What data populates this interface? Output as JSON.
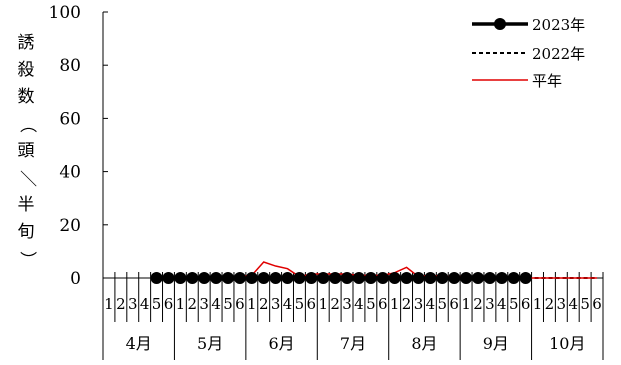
{
  "chart_data": {
    "type": "line",
    "ylabel": "誘殺数（頭／半旬）",
    "ylim": [
      0,
      100
    ],
    "yticks": [
      0,
      20,
      40,
      60,
      80,
      100
    ],
    "months": [
      "4月",
      "5月",
      "6月",
      "7月",
      "8月",
      "9月",
      "10月"
    ],
    "pentad_labels": [
      "1",
      "2",
      "3",
      "4",
      "5",
      "6"
    ],
    "legend": {
      "position": "top-right"
    },
    "series": [
      {
        "name": "2023年",
        "style": "thick-line-markers",
        "color": "#000000",
        "values": [
          null,
          null,
          null,
          null,
          0,
          0,
          0,
          0,
          0,
          0,
          0,
          0,
          0,
          0,
          0,
          0,
          0,
          0,
          0,
          0,
          0,
          0,
          0,
          0,
          0,
          0,
          0,
          0,
          0,
          0,
          0,
          0,
          0,
          0,
          0,
          0,
          null,
          null,
          null,
          null,
          null,
          null
        ]
      },
      {
        "name": "2022年",
        "style": "dashed",
        "color": "#000000",
        "values": [
          null,
          null,
          null,
          null,
          0,
          0,
          0,
          0,
          0,
          0,
          0,
          0,
          0,
          0,
          0,
          0,
          0,
          0,
          0,
          0,
          0,
          0,
          0,
          0,
          0,
          0,
          0,
          0,
          0,
          0,
          0,
          0,
          0,
          0,
          0,
          0,
          0,
          0,
          0,
          0,
          0,
          0
        ]
      },
      {
        "name": "平年",
        "style": "thin",
        "color": "#e00000",
        "values": [
          null,
          null,
          null,
          null,
          0,
          0,
          0,
          0,
          0,
          0,
          0,
          0.5,
          1,
          6,
          4.5,
          3.5,
          0.5,
          1.5,
          1.5,
          1.5,
          1.5,
          1,
          1,
          1,
          2,
          4,
          0.5,
          1,
          0.5,
          0.5,
          0.5,
          0,
          0,
          0,
          0,
          0,
          0,
          0,
          0,
          0,
          0,
          0
        ]
      }
    ]
  }
}
